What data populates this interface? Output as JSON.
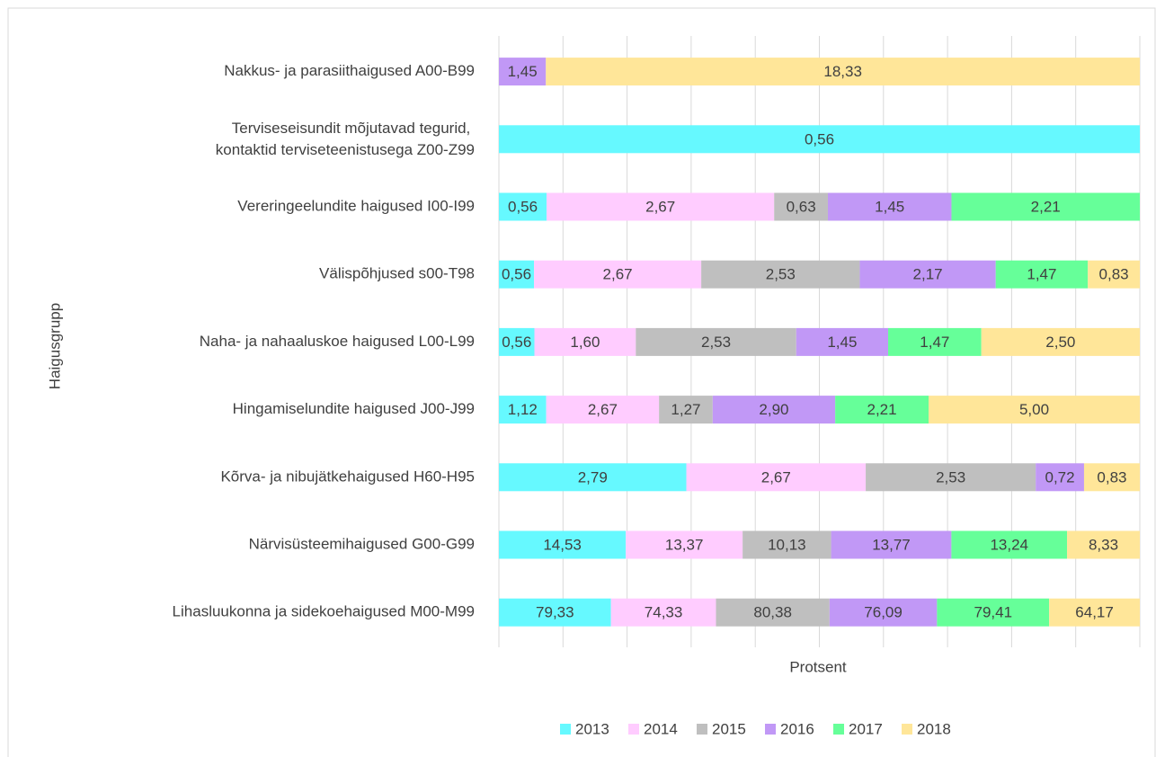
{
  "chart_data": {
    "type": "bar",
    "orientation": "horizontal",
    "stacking": "percent",
    "y_label": "Haigusgrupp",
    "x_label": "Protsent",
    "categories": [
      "Nakkus- ja parasiithaigused A00-B99",
      "Terviseseisundit mõjutavad tegurid, kontaktid terviseteenistusega Z00-Z99",
      "Vereringeelundite haigused I00-I99",
      "Välispõhjused s00-T98",
      "Naha- ja nahaaluskoe haigused L00-L99",
      "Hingamiselundite haigused J00-J99",
      "Kõrva- ja nibujätkehaigused H60-H95",
      "Närvisüsteemihaigused G00-G99",
      "Lihasluukonna  ja sidekoehaigused M00-M99"
    ],
    "series": [
      {
        "name": "2013",
        "color": "#66f9ff",
        "values": [
          null,
          0.56,
          0.56,
          0.56,
          0.56,
          1.12,
          2.79,
          14.53,
          79.33
        ],
        "value_labels": [
          null,
          "0,56",
          "0,56",
          "0,56",
          "0,56",
          "1,12",
          "2,79",
          "14,53",
          "79,33"
        ]
      },
      {
        "name": "2014",
        "color": "#ffccff",
        "values": [
          null,
          null,
          2.67,
          2.67,
          1.6,
          2.67,
          2.67,
          13.37,
          74.33
        ],
        "value_labels": [
          null,
          null,
          "2,67",
          "2,67",
          "1,60",
          "2,67",
          "2,67",
          "13,37",
          "74,33"
        ]
      },
      {
        "name": "2015",
        "color": "#bfbfbf",
        "values": [
          null,
          null,
          0.63,
          2.53,
          2.53,
          1.27,
          2.53,
          10.13,
          80.38
        ],
        "value_labels": [
          null,
          null,
          "0,63",
          "2,53",
          "2,53",
          "1,27",
          "2,53",
          "10,13",
          "80,38"
        ]
      },
      {
        "name": "2016",
        "color": "#c198f6",
        "values": [
          1.45,
          null,
          1.45,
          2.17,
          1.45,
          2.9,
          0.72,
          13.77,
          76.09
        ],
        "value_labels": [
          "1,45",
          null,
          "1,45",
          "2,17",
          "1,45",
          "2,90",
          "0,72",
          "13,77",
          "76,09"
        ]
      },
      {
        "name": "2017",
        "color": "#66ff99",
        "values": [
          null,
          null,
          2.21,
          1.47,
          1.47,
          2.21,
          null,
          13.24,
          79.41
        ],
        "value_labels": [
          null,
          null,
          "2,21",
          "1,47",
          "1,47",
          "2,21",
          null,
          "13,24",
          "79,41"
        ]
      },
      {
        "name": "2018",
        "color": "#ffe699",
        "values": [
          18.33,
          null,
          null,
          0.83,
          2.5,
          5.0,
          0.83,
          8.33,
          64.17
        ],
        "value_labels": [
          "18,33",
          null,
          null,
          "0,83",
          "2,50",
          "5,00",
          "0,83",
          "8,33",
          "64,17"
        ]
      }
    ],
    "xlim": [
      0,
      100
    ],
    "xticks": [
      0,
      10,
      20,
      30,
      40,
      50,
      60,
      70,
      80,
      90,
      100
    ],
    "grid": true,
    "legend": "bottom"
  }
}
